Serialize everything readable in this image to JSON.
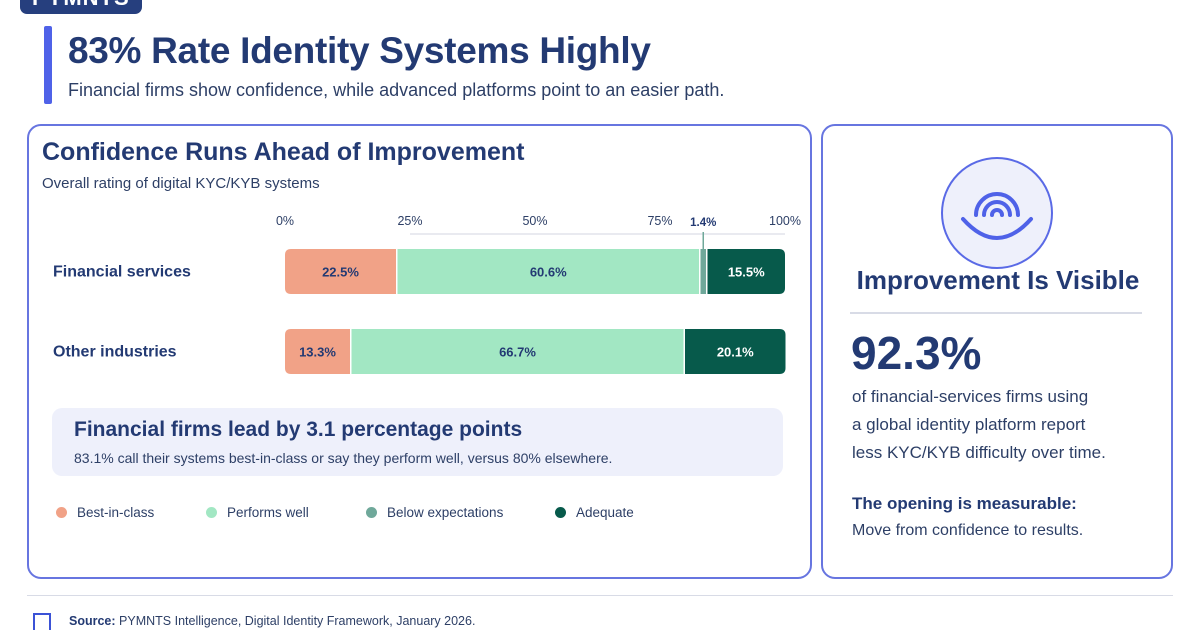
{
  "brand": {
    "logo_text": "PYMNTS"
  },
  "header": {
    "title": "83% Rate Identity Systems Highly",
    "subtitle": "Financial firms show confidence, while advanced platforms point to an easier path."
  },
  "chart_panel": {
    "title": "Confidence Runs Ahead of Improvement",
    "subtitle": "Overall rating of digital KYC/KYB systems"
  },
  "chart_data": {
    "type": "bar",
    "orientation": "horizontal",
    "stacked": true,
    "categories": [
      "Financial services",
      "Other industries"
    ],
    "series": [
      {
        "name": "Best-in-class",
        "color": "#f1a287",
        "values": [
          22.5,
          13.3
        ],
        "labels": [
          "22.5%",
          "13.3%"
        ]
      },
      {
        "name": "Performs well",
        "color": "#a2e7c3",
        "values": [
          60.6,
          66.7
        ],
        "labels": [
          "60.6%",
          "66.7%"
        ]
      },
      {
        "name": "Below expectations",
        "color": "#6fa89a",
        "values": [
          1.4,
          0
        ],
        "labels": [
          "1.4%",
          ""
        ]
      },
      {
        "name": "Adequate",
        "color": "#075a4b",
        "values": [
          15.5,
          20.1
        ],
        "labels": [
          "15.5%",
          "20.1%"
        ]
      }
    ],
    "x_ticks": [
      "0%",
      "25%",
      "50%",
      "75%",
      "100%"
    ],
    "xlim": [
      0,
      100
    ],
    "legend_position": "bottom-left"
  },
  "callout": {
    "title": "Financial firms lead by 3.1 percentage points",
    "text": "83.1% call their systems best-in-class or say they perform well, versus 80% elsewhere."
  },
  "side_panel": {
    "icon": "fingerprint-smile-icon",
    "title": "Improvement Is Visible",
    "stat": "92.3%",
    "description_lines": [
      "of financial-services firms using",
      "a global identity platform report",
      "less KYC/KYB difficulty over time."
    ],
    "opening_title": "The opening is measurable:",
    "opening_text": "Move from confidence to results."
  },
  "footer": {
    "source_label": "Source:",
    "source_text": "PYMNTS Intelligence, Digital Identity Framework, January 2026."
  },
  "colors": {
    "accent": "#4f62e8",
    "navy": "#233a73",
    "card_border": "#6775e0"
  }
}
